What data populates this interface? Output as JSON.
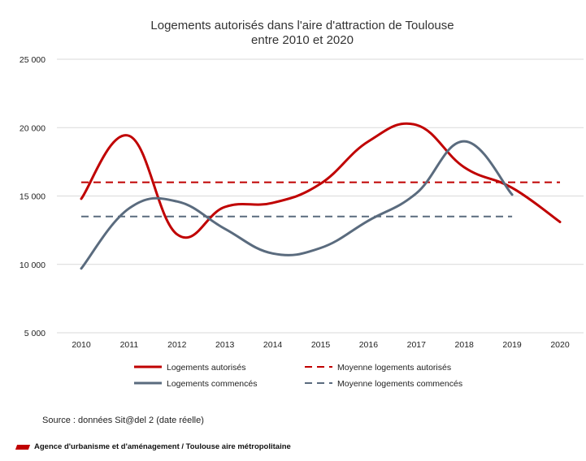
{
  "chart_data": {
    "type": "line",
    "title_line1": "Logements autorisés dans l'aire d'attraction de Toulouse",
    "title_line2": "entre 2010 et 2020",
    "x": [
      "2010",
      "2011",
      "2012",
      "2013",
      "2014",
      "2015",
      "2016",
      "2017",
      "2018",
      "2019",
      "2020"
    ],
    "ylim": [
      5000,
      25000
    ],
    "yticks": [
      5000,
      10000,
      15000,
      20000,
      25000
    ],
    "ytick_labels": [
      "5 000",
      "10 000",
      "15 000",
      "20 000",
      "25 000"
    ],
    "grid": true,
    "legend_position": "bottom",
    "series": [
      {
        "name": "Logements autorisés",
        "style": "solid",
        "color": "#c00000",
        "values": [
          14800,
          19400,
          12200,
          14200,
          14500,
          15900,
          19000,
          20200,
          17100,
          15600,
          13100
        ]
      },
      {
        "name": "Logements commencés",
        "style": "solid",
        "color": "#5a6b7e",
        "values": [
          9700,
          14100,
          14600,
          12600,
          10800,
          11200,
          13200,
          15200,
          19000,
          15100,
          null
        ]
      },
      {
        "name": "Moyenne logements autorisés",
        "style": "dashed",
        "color": "#c00000",
        "values": [
          16000,
          16000,
          16000,
          16000,
          16000,
          16000,
          16000,
          16000,
          16000,
          16000,
          16000
        ]
      },
      {
        "name": "Moyenne logements commencés",
        "style": "dashed",
        "color": "#5a6b7e",
        "values": [
          13500,
          13500,
          13500,
          13500,
          13500,
          13500,
          13500,
          13500,
          13500,
          13500,
          null
        ]
      }
    ]
  },
  "source": "Source : données Sit@del 2 (date réelle)",
  "footer": "Agence d'urbanisme et d'aménagement / Toulouse aire métropolitaine"
}
